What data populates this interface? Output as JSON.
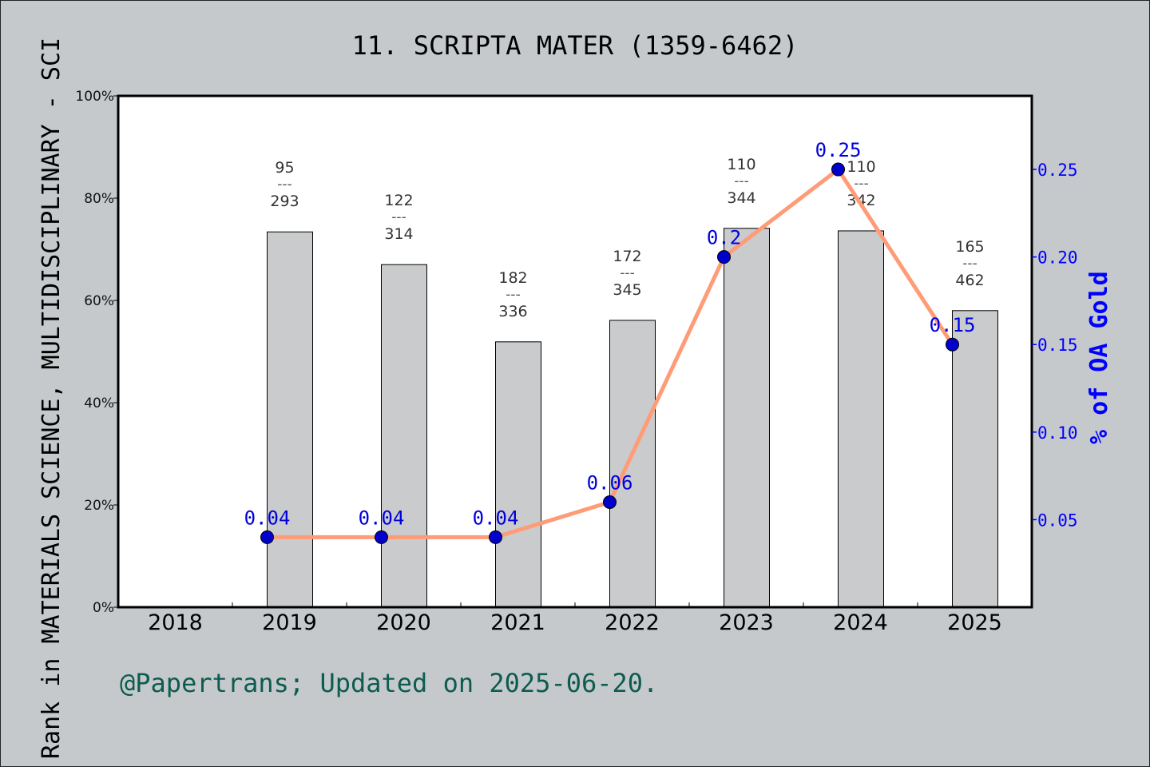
{
  "chart_data": {
    "type": "bar+line",
    "title": "11. SCRIPTA MATER (1359-6462)",
    "ylabel": "Rank in MATERIALS SCIENCE, MULTIDISCIPLINARY - SCI",
    "y2label": "% of OA Gold",
    "footer": "@Papertrans; Updated on 2025-06-20.",
    "categories": [
      "2018",
      "2019",
      "2020",
      "2021",
      "2022",
      "2023",
      "2024",
      "2025"
    ],
    "ylim": [
      0,
      100
    ],
    "yticks": [
      "0%",
      "20%",
      "40%",
      "60%",
      "80%",
      "100%"
    ],
    "y2lim": [
      0,
      0.292
    ],
    "y2ticks": [
      "0.05",
      "0.10",
      "0.15",
      "0.20",
      "0.25"
    ],
    "bars": {
      "values": [
        null,
        73.4,
        67.0,
        51.9,
        56.1,
        74.1,
        73.6,
        58.0
      ],
      "rank": [
        null,
        "95",
        "122",
        "182",
        "172",
        "110",
        "110",
        "165"
      ],
      "total": [
        null,
        "293",
        "314",
        "336",
        "345",
        "344",
        "342",
        "462"
      ],
      "separator": "---",
      "color": "#b8b9bb"
    },
    "line": {
      "values": [
        null,
        0.04,
        0.04,
        0.04,
        0.06,
        0.2,
        0.25,
        0.15
      ],
      "labels": [
        null,
        "0.04",
        "0.04",
        "0.04",
        "0.06",
        "0.2",
        "0.25",
        "0.15"
      ],
      "line_color": "#ff9c78",
      "marker_color": "#0000cc",
      "label_color": "#0000dd"
    },
    "background": "#c6c9cc",
    "grid": false,
    "legend": "none"
  }
}
